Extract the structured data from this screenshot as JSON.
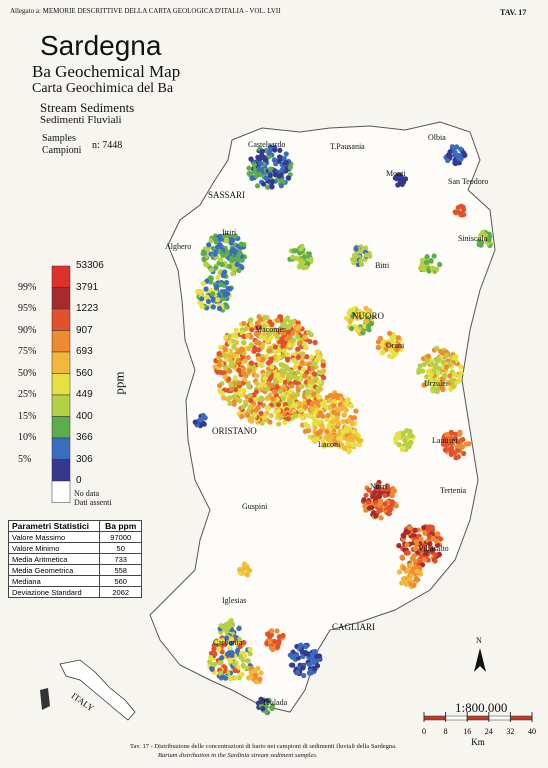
{
  "header": {
    "series": "Allegato a: MEMORIE DESCRITTIVE DELLA CARTA GEOLOGICA D'ITALIA - VOL. LVII",
    "plate": "TAV. 17"
  },
  "title": {
    "region": "Sardegna",
    "en": "Ba Geochemical Map",
    "it": "Carta Geochimica del Ba",
    "media_en": "Stream Sediments",
    "media_it": "Sedimenti Fluviali",
    "samples_en": "Samples",
    "samples_it": "Campioni",
    "count": "n: 7448"
  },
  "legend": {
    "unit": "ppm",
    "no_data": "No data",
    "no_data_it": "Dati assenti",
    "rows": [
      {
        "percentile": null,
        "value": 53306,
        "color": "#e0302a"
      },
      {
        "percentile": "99%",
        "value": 3791,
        "color": "#a82a2a"
      },
      {
        "percentile": "95%",
        "value": 1223,
        "color": "#e2502c"
      },
      {
        "percentile": "90%",
        "value": 907,
        "color": "#f08a30"
      },
      {
        "percentile": "75%",
        "value": 693,
        "color": "#f2b83c"
      },
      {
        "percentile": "50%",
        "value": 560,
        "color": "#e6e040"
      },
      {
        "percentile": "25%",
        "value": 449,
        "color": "#b4d044"
      },
      {
        "percentile": "15%",
        "value": 400,
        "color": "#5cae4a"
      },
      {
        "percentile": "10%",
        "value": 366,
        "color": "#3a6cc0"
      },
      {
        "percentile": "5%",
        "value": 306,
        "color": "#34388e"
      },
      {
        "percentile": null,
        "value": 0,
        "color": "#ffffff"
      }
    ]
  },
  "stats": {
    "header": [
      "Parametri Statistici",
      "Ba  ppm"
    ],
    "rows": [
      [
        "Valore Massimo",
        "97000"
      ],
      [
        "Valore Minimo",
        "50"
      ],
      [
        "Media Aritmetica",
        "733"
      ],
      [
        "Media Geometrica",
        "558"
      ],
      [
        "Mediana",
        "560"
      ],
      [
        "Deviazione Standard",
        "2062"
      ]
    ]
  },
  "places": [
    "Castelsardo",
    "T.Pausania",
    "Olbia",
    "SASSARI",
    "Monti",
    "San Teodoro",
    "Alghero",
    "Ittiri",
    "Siniscola",
    "Bitti",
    "NUORO",
    "Orani",
    "Macomer",
    "Urzulei",
    "ORISTANO",
    "Laconi",
    "Lanusei",
    "Nurri",
    "Tertenia",
    "Villasalto",
    "Guspini",
    "Iglesias",
    "CAGLIARI",
    "Carbonia",
    "Teulada"
  ],
  "inset": "ITALY",
  "north": "N",
  "scale_bar": {
    "ratio": "1:800.000",
    "ticks": [
      0,
      8,
      16,
      24,
      32,
      40
    ],
    "unit": "Km"
  },
  "caption": {
    "it": "Tav. 17 - Distribuzione delle concentrazioni di bario nei campioni di sedimenti fluviali della Sardegna.",
    "en": "Barium distribution in the Sardinia stream sediment samples."
  }
}
